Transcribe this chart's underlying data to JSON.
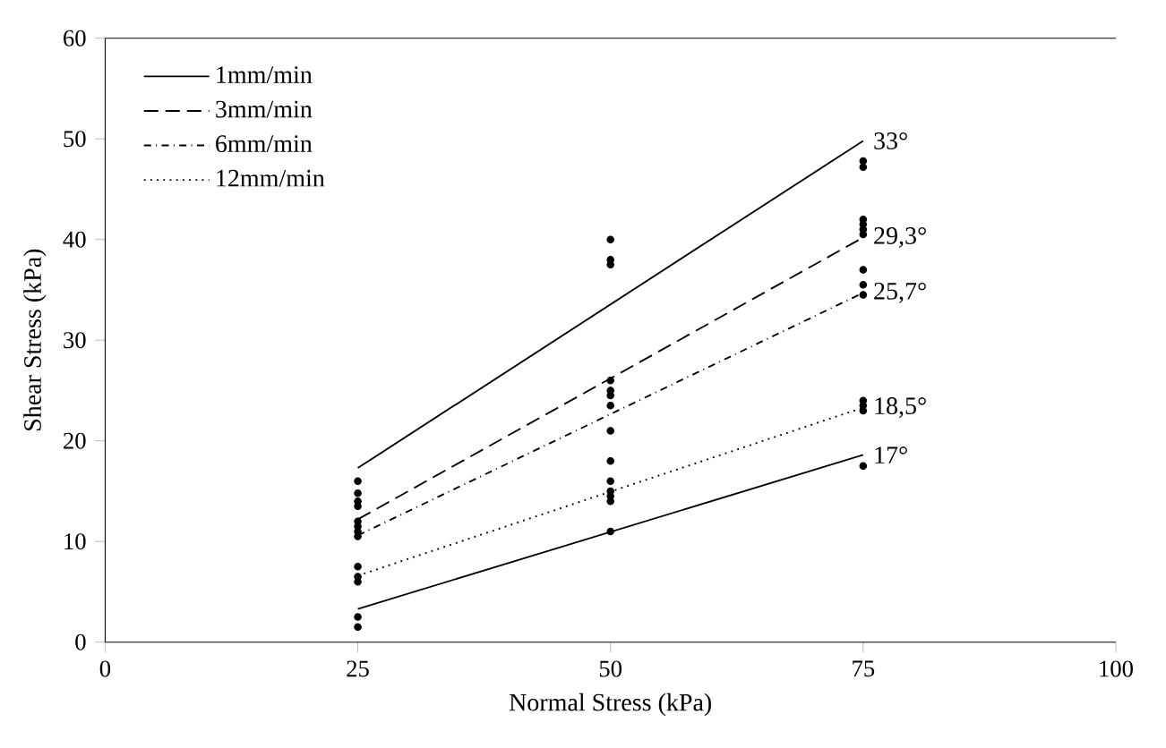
{
  "chart_data": {
    "type": "scatter",
    "xlabel": "Normal Stress (kPa)",
    "ylabel": "Shear Stress (kPa)",
    "xlim": [
      0,
      100
    ],
    "ylim": [
      0,
      60
    ],
    "xticks": [
      0,
      25,
      50,
      75,
      100
    ],
    "yticks": [
      0,
      10,
      20,
      30,
      40,
      50,
      60
    ],
    "legend": "top left",
    "grid": false,
    "series": [
      {
        "color": "#000000",
        "marker": "circle",
        "x": [
          25,
          25,
          25,
          25,
          25,
          25,
          25,
          25,
          25,
          25,
          25,
          25,
          25,
          50,
          50,
          50,
          50,
          50,
          50,
          50,
          50,
          50,
          50,
          50,
          50,
          50,
          50,
          75,
          75,
          75,
          75,
          75,
          75,
          75,
          75,
          75,
          75,
          75,
          75,
          75
        ],
        "values": [
          16,
          14.8,
          14,
          13.5,
          12,
          11.5,
          11,
          10.5,
          7.5,
          6.5,
          6,
          2.5,
          1.5,
          40,
          38,
          37.5,
          26,
          25,
          24.5,
          23.5,
          21,
          18,
          16,
          15,
          14.5,
          14,
          11,
          47.8,
          47.2,
          42,
          41.5,
          41,
          40.5,
          37,
          35.5,
          34.5,
          24,
          23.5,
          23,
          17.5
        ]
      },
      {
        "type": "line",
        "name": "1mm/min",
        "color": "#000000",
        "line_style": "solid",
        "marker": "none",
        "x": [
          25,
          75
        ],
        "values": [
          17.3,
          49.8
        ]
      },
      {
        "type": "line",
        "name": "3mm/min",
        "color": "#000000",
        "line_style": "dashed",
        "marker": "none",
        "x": [
          25,
          75
        ],
        "values": [
          12.2,
          40.2
        ]
      },
      {
        "type": "line",
        "name": "6mm/min",
        "color": "#000000",
        "line_style": "dashdot",
        "marker": "none",
        "x": [
          25,
          75
        ],
        "values": [
          10.6,
          34.7
        ]
      },
      {
        "type": "line",
        "name": "12mm/min",
        "color": "#000000",
        "line_style": "dotted",
        "marker": "none",
        "x": [
          25,
          75
        ],
        "values": [
          6.6,
          23.3
        ]
      },
      {
        "type": "line",
        "color": "#000000",
        "line_style": "solid",
        "marker": "none",
        "x": [
          25,
          75
        ],
        "values": [
          3.3,
          18.6
        ]
      }
    ],
    "annotations": [
      "33°",
      "29,3°",
      "25,7°",
      "18,5°",
      "17°"
    ]
  }
}
